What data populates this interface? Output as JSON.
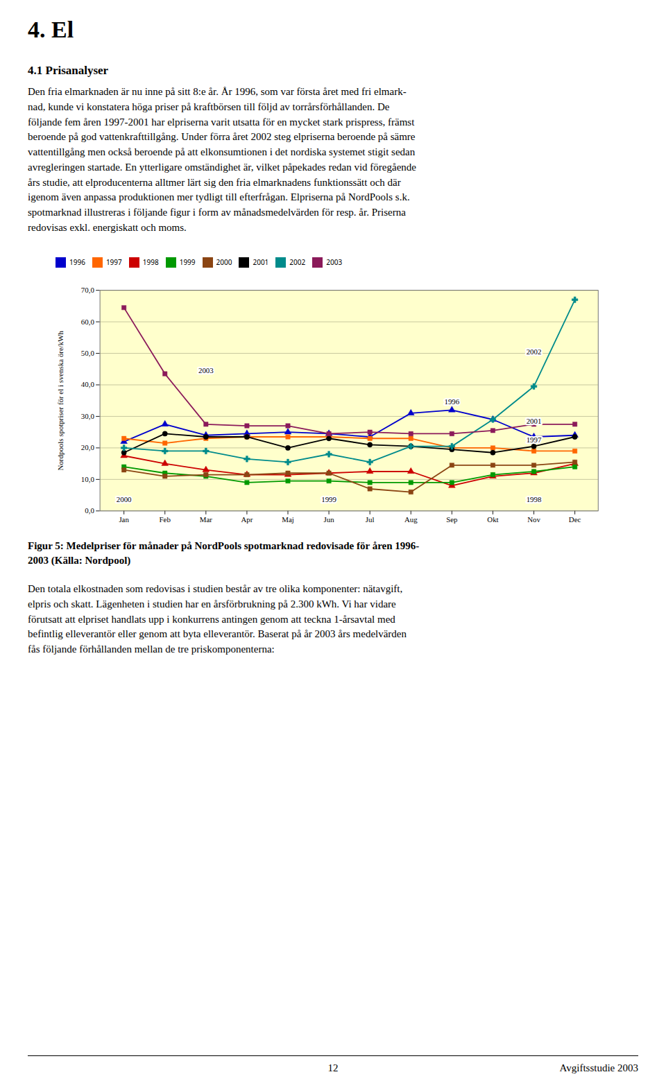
{
  "page": {
    "title": "4. El",
    "section_heading": "4.1 Prisanalyser",
    "body_text1": "Den fria elmarknaden är nu inne på sitt 8:e år. År 1996, som var första året med fri elmark-\nnad, kunde vi konstatera höga priser på kraftbörsen till följd av torrårsförhållanden. De\nföljande fem åren 1997-2001 har elpriserna varit utsatta för en mycket stark prispress, främst\nberoende på god vattenkrafttillgång. Under förra året 2002 steg elpriserna beroende på sämre\nvattentillgång men också beroende på att elkonsumtionen i det nordiska systemet stigit sedan\navregleringen startade. En ytterligare omständighet är, vilket påpekades redan vid föregående\nårs studie, att elproducenterna alltmer lärt sig den fria elmarknadens funktionssätt och där\nigenom även anpassa produktionen mer tydligt till efterfrågan. Elpriserna på NordPools s.k.\nspotmarknad illustreras i följande figur i form av månadsmedelvärden för resp. år. Priserna\nredovisas exkl. energiskatt och moms.",
    "caption": "Figur 5: Medelpriser för månader på NordPools spotmarknad redovisade för åren 1996-\n2003 (Källa: Nordpool)",
    "body_text2": "Den totala elkostnaden som redovisas i studien består av tre olika komponenter: nätavgift,\nelpris och skatt. Lägenheten i studien har en årsförbrukning på 2.300 kWh. Vi har vidare\nförutsatt att elpriset handlats upp i konkurrens antingen genom att teckna 1-årsavtal med\nbefintlig elleverantör eller genom att byta elleverantör. Baserat på år 2003 års medelvärden\nfås följande förhållanden mellan de tre priskomponenterna:",
    "page_number": "12",
    "footer_text": "Avgiftsstudie 2003"
  },
  "chart_data": {
    "type": "line",
    "categories": [
      "Jan",
      "Feb",
      "Mar",
      "Apr",
      "Maj",
      "Jun",
      "Jul",
      "Aug",
      "Sep",
      "Okt",
      "Nov",
      "Dec"
    ],
    "series": [
      {
        "name": "1996",
        "color": "#0000CC",
        "marker": "triangle",
        "values": [
          22.0,
          27.5,
          24.0,
          24.5,
          25.0,
          24.5,
          23.5,
          31.0,
          32.0,
          29.0,
          23.5,
          24.0
        ]
      },
      {
        "name": "1997",
        "color": "#FF6600",
        "marker": "square",
        "values": [
          23.0,
          21.5,
          23.0,
          23.5,
          23.5,
          23.5,
          23.0,
          23.0,
          20.0,
          20.0,
          19.0,
          19.0
        ]
      },
      {
        "name": "1998",
        "color": "#CC0000",
        "marker": "triangle",
        "values": [
          17.5,
          15.0,
          13.0,
          11.5,
          11.5,
          12.0,
          12.5,
          12.5,
          8.0,
          11.0,
          12.0,
          15.0
        ]
      },
      {
        "name": "1999",
        "color": "#009900",
        "marker": "square",
        "values": [
          14.0,
          12.0,
          11.0,
          9.0,
          9.5,
          9.5,
          9.0,
          9.0,
          9.0,
          11.5,
          12.5,
          14.0
        ]
      },
      {
        "name": "2000",
        "color": "#8B4513",
        "marker": "square",
        "values": [
          13.0,
          11.0,
          11.5,
          11.5,
          12.0,
          12.0,
          7.0,
          6.0,
          14.5,
          14.5,
          14.5,
          15.5
        ]
      },
      {
        "name": "2001",
        "color": "#000000",
        "marker": "circle",
        "values": [
          18.5,
          24.5,
          23.5,
          23.5,
          20.0,
          23.0,
          21.0,
          20.5,
          19.5,
          18.5,
          20.5,
          23.5
        ]
      },
      {
        "name": "2002",
        "color": "#008B8B",
        "marker": "plus",
        "values": [
          20.0,
          19.0,
          19.0,
          16.5,
          15.5,
          18.0,
          15.5,
          20.5,
          20.5,
          29.0,
          39.5,
          67.0
        ]
      },
      {
        "name": "2003",
        "color": "#8B1A5A",
        "marker": "square",
        "values": [
          64.5,
          43.5,
          27.5,
          27.0,
          27.0,
          24.5,
          25.0,
          24.5,
          24.5,
          25.5,
          27.5,
          27.5
        ]
      }
    ],
    "ylabel": "Nordpools spotpriser för el i svenska öre/kWh",
    "ylim": [
      0.0,
      70.0
    ],
    "yticks": [
      {
        "value": 0.0,
        "label": "0,0"
      },
      {
        "value": 10.0,
        "label": "10,0"
      },
      {
        "value": 20.0,
        "label": "20,0"
      },
      {
        "value": 30.0,
        "label": "30,0"
      },
      {
        "value": 40.0,
        "label": "40,0"
      },
      {
        "value": 50.0,
        "label": "50,0"
      },
      {
        "value": 60.0,
        "label": "60,0"
      },
      {
        "value": 70.0,
        "label": "70,0"
      }
    ],
    "grid": true,
    "legend": "top",
    "background_color": "#FFFFCC",
    "annotations": [
      {
        "text": "2003",
        "x": "Mar",
        "y": 44.5
      },
      {
        "text": "2002",
        "x": "Nov",
        "y": 50.5
      },
      {
        "text": "1996",
        "x": "Sep",
        "y": 34.5
      },
      {
        "text": "2001",
        "x": "Nov",
        "y": 28.5
      },
      {
        "text": "1997",
        "x": "Nov",
        "y": 22.5
      },
      {
        "text": "2000",
        "x": "Jan",
        "y": 3.5
      },
      {
        "text": "1999",
        "x": "Jun",
        "y": 3.5
      },
      {
        "text": "1998",
        "x": "Nov",
        "y": 3.5
      }
    ]
  }
}
